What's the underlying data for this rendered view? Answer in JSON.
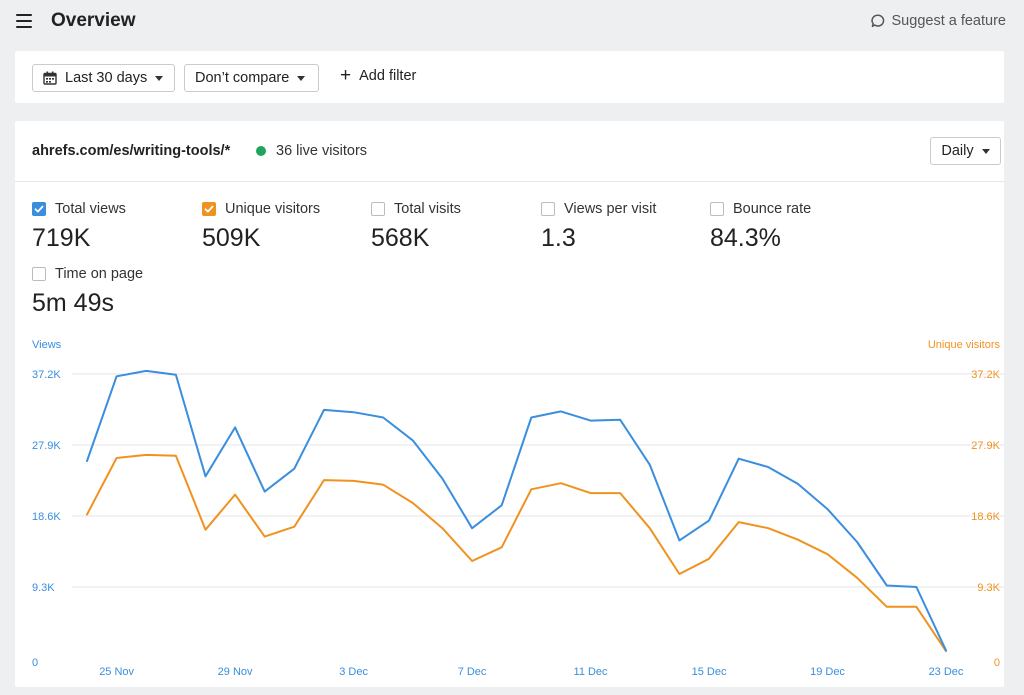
{
  "header": {
    "title": "Overview",
    "suggest_label": "Suggest a feature"
  },
  "filters": {
    "range_label": "Last 30 days",
    "compare_label": "Don’t compare",
    "add_filter_label": "Add filter"
  },
  "panel": {
    "site": "ahrefs.com/es/writing-tools/*",
    "live_visitors": "36 live visitors",
    "interval_label": "Daily"
  },
  "metrics": [
    {
      "label": "Total views",
      "value": "719K",
      "checked": true,
      "color": "#3a8ede"
    },
    {
      "label": "Unique visitors",
      "value": "509K",
      "checked": true,
      "color": "#f0921f"
    },
    {
      "label": "Total visits",
      "value": "568K",
      "checked": false
    },
    {
      "label": "Views per visit",
      "value": "1.3",
      "checked": false
    },
    {
      "label": "Bounce rate",
      "value": "84.3%",
      "checked": false
    },
    {
      "label": "Time on page",
      "value": "5m 49s",
      "checked": false
    }
  ],
  "chart_data": {
    "type": "line",
    "y_left_label": "Views",
    "y_right_label": "Unique visitors",
    "y_ticks": [
      "0",
      "9.3K",
      "18.6K",
      "27.9K",
      "37.2K"
    ],
    "y_tick_values": [
      0,
      9300,
      18600,
      27900,
      37200
    ],
    "ylim": [
      0,
      37200
    ],
    "x": [
      "24 Nov",
      "25 Nov",
      "26 Nov",
      "27 Nov",
      "28 Nov",
      "29 Nov",
      "30 Nov",
      "1 Dec",
      "2 Dec",
      "3 Dec",
      "4 Dec",
      "5 Dec",
      "6 Dec",
      "7 Dec",
      "8 Dec",
      "9 Dec",
      "10 Dec",
      "11 Dec",
      "12 Dec",
      "13 Dec",
      "14 Dec",
      "15 Dec",
      "16 Dec",
      "17 Dec",
      "18 Dec",
      "19 Dec",
      "20 Dec",
      "21 Dec",
      "22 Dec",
      "23 Dec"
    ],
    "x_tick_labels": [
      "25 Nov",
      "29 Nov",
      "3 Dec",
      "7 Dec",
      "11 Dec",
      "15 Dec",
      "19 Dec",
      "23 Dec"
    ],
    "grid": true,
    "series": [
      {
        "name": "Total views",
        "color": "#3a8ede",
        "values": [
          25800,
          36900,
          37600,
          37100,
          23800,
          30200,
          21800,
          24800,
          32500,
          32200,
          31500,
          28500,
          23500,
          17000,
          20000,
          31500,
          32300,
          31100,
          31200,
          25300,
          15400,
          18000,
          26100,
          25000,
          22800,
          19500,
          15200,
          9500,
          9300,
          1000
        ]
      },
      {
        "name": "Unique visitors",
        "color": "#f0921f",
        "values": [
          18800,
          26200,
          26600,
          26500,
          16800,
          21400,
          15900,
          17200,
          23300,
          23200,
          22700,
          20300,
          17000,
          12700,
          14500,
          22100,
          22900,
          21600,
          21600,
          17000,
          11000,
          13000,
          17800,
          17000,
          15500,
          13600,
          10500,
          6700,
          6700,
          900
        ]
      }
    ]
  }
}
